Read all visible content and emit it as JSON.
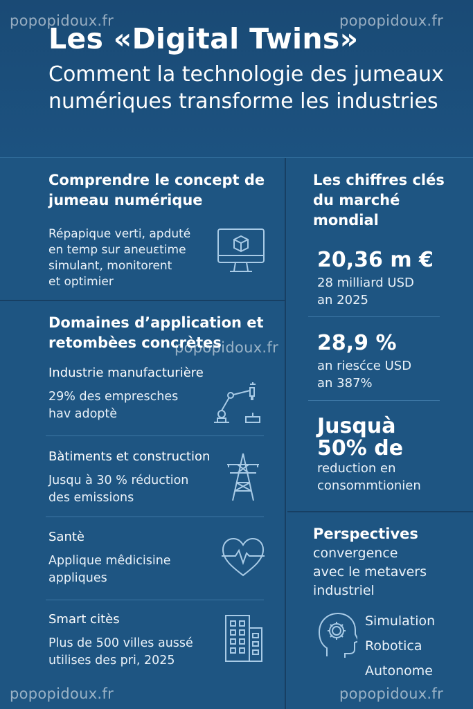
{
  "header": {
    "title": "Les «Digital Twins»",
    "subtitle": "Comment la technologie des jumeaux numériques transforme les industries"
  },
  "watermark": "popopidoux.fr",
  "concept": {
    "title": "Comprendre le concept de jumeau numérique",
    "text_lines": [
      "Répapique verti, apduté",
      "en temp sur aneuεtime",
      "simulant, monitorent",
      "et optimier"
    ],
    "icon": "monitor-cube-icon"
  },
  "domains": {
    "title": "Domaines d’application et retombèes concrètes",
    "items": [
      {
        "title": "Industrie manufacturière",
        "text_lines": [
          "29% des empresches",
          "hav adoptè"
        ],
        "icon": "robot-arm-icon"
      },
      {
        "title": "Bàtiments et construction",
        "text_lines": [
          "Jusqu à 30 % réduction",
          "des emissions"
        ],
        "icon": "pylon-icon"
      },
      {
        "title": "Santè",
        "text_lines": [
          "Applique mêdicisine",
          "appliques"
        ],
        "icon": "heart-pulse-icon"
      },
      {
        "title": "Smart citès",
        "text_lines": [
          "Plus de 500 villes aussé",
          "utilises des pri, 2025"
        ],
        "icon": "building-icon"
      }
    ]
  },
  "figures": {
    "title": "Les chiffres clés du marché mondial",
    "stats": [
      {
        "big_lines": [
          "20,36 m €"
        ],
        "text_lines": [
          "28 milliard USD",
          "an 2025"
        ]
      },
      {
        "big_lines": [
          "28,9 %"
        ],
        "text_lines": [
          "an riesćce USD",
          "an 387%"
        ]
      },
      {
        "big_lines": [
          "Jusquà",
          "50% de"
        ],
        "text_lines": [
          "reduction en",
          "consommtionien"
        ]
      }
    ]
  },
  "perspectives": {
    "title": "Perspectives",
    "subtitle_lines": [
      "convergence",
      "avec le metavers",
      "industriel"
    ],
    "items": [
      "Simulation",
      "Robotica",
      "Autonome"
    ],
    "icon": "head-gear-icon"
  },
  "colors": {
    "background": "#1f5683",
    "header": "#1a4a75",
    "icon_stroke": "#a9cbe6"
  }
}
